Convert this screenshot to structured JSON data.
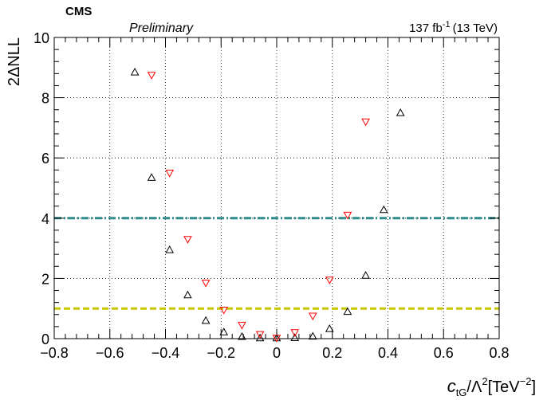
{
  "chart_data": {
    "type": "scatter",
    "header": {
      "experiment": "CMS",
      "status": "Preliminary",
      "lumi_value": "137 fb",
      "lumi_exp": "-1",
      "lumi_energy": "(13 TeV)"
    },
    "ylabel": "2ΔNLL",
    "xlabel_parts": {
      "c": "c",
      "c_sub": "tG",
      "lambda": "/Λ",
      "lambda_sup": "2",
      "unit": "[TeV",
      "unit_sup": "−2",
      "unit_close": "]"
    },
    "xlim": [
      -0.8,
      0.8
    ],
    "ylim": [
      0,
      10
    ],
    "xticks": [
      -0.8,
      -0.6,
      -0.4,
      -0.2,
      0,
      0.2,
      0.4,
      0.6,
      0.8
    ],
    "xtick_labels": [
      "−0.8",
      "−0.6",
      "−0.4",
      "−0.2",
      "0",
      "0.2",
      "0.4",
      "0.6",
      "0.8"
    ],
    "yticks": [
      0,
      2,
      4,
      6,
      8,
      10
    ],
    "ytick_labels": [
      "0",
      "2",
      "4",
      "6",
      "8",
      "10"
    ],
    "grid": true,
    "series": [
      {
        "marker": "triangle-up",
        "color": "#000000",
        "points": [
          [
            -0.51,
            8.85
          ],
          [
            -0.45,
            5.35
          ],
          [
            -0.385,
            2.95
          ],
          [
            -0.32,
            1.45
          ],
          [
            -0.255,
            0.6
          ],
          [
            -0.19,
            0.22
          ],
          [
            -0.125,
            0.07
          ],
          [
            -0.06,
            0.02
          ],
          [
            0.0,
            0.02
          ],
          [
            0.065,
            0.03
          ],
          [
            0.13,
            0.08
          ],
          [
            0.19,
            0.33
          ],
          [
            0.255,
            0.9
          ],
          [
            0.32,
            2.1
          ],
          [
            0.385,
            4.28
          ],
          [
            0.445,
            7.5
          ]
        ]
      },
      {
        "marker": "triangle-down",
        "color": "#ff0000",
        "points": [
          [
            -0.45,
            8.75
          ],
          [
            -0.385,
            5.5
          ],
          [
            -0.32,
            3.3
          ],
          [
            -0.255,
            1.85
          ],
          [
            -0.19,
            0.95
          ],
          [
            -0.125,
            0.45
          ],
          [
            -0.06,
            0.14
          ],
          [
            0.0,
            0.02
          ],
          [
            0.065,
            0.2
          ],
          [
            0.13,
            0.75
          ],
          [
            0.19,
            1.95
          ],
          [
            0.255,
            4.1
          ],
          [
            0.32,
            7.2
          ]
        ]
      }
    ],
    "reference_lines": [
      {
        "y": 1,
        "color": "#c8c800",
        "style": "dashed"
      },
      {
        "y": 4,
        "color": "#2e8b8b",
        "style": "dash-dot"
      }
    ]
  }
}
